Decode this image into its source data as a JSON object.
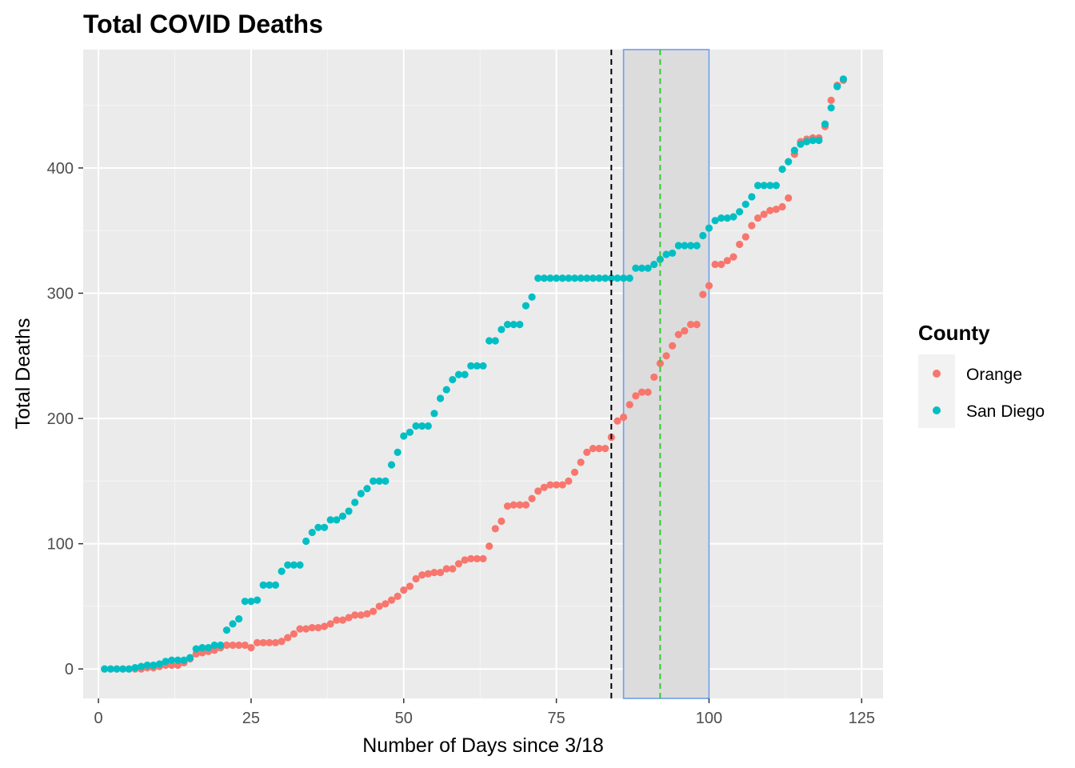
{
  "chart_data": {
    "type": "scatter",
    "title": "Total COVID Deaths",
    "xlabel": "Number of Days since 3/18",
    "ylabel": "Total Deaths",
    "xlim": [
      -2.5,
      128.5
    ],
    "ylim": [
      -23.5,
      494.5
    ],
    "x_ticks": [
      0,
      25,
      50,
      75,
      100,
      125
    ],
    "x_tick_labels": [
      "0",
      "25",
      "50",
      "75",
      "100",
      "125"
    ],
    "y_ticks": [
      0,
      100,
      200,
      300,
      400
    ],
    "y_tick_labels": [
      "0",
      "100",
      "200",
      "300",
      "400"
    ],
    "grid": true,
    "background": "#ebebeb",
    "legend": {
      "title": "County",
      "position": "right"
    },
    "shaded_region": {
      "xmin": 86,
      "xmax": 100,
      "fill": "#dcdcdc",
      "border": "#6d9eeb"
    },
    "vlines": [
      {
        "x": 84,
        "color": "#000000",
        "style": "dashed"
      },
      {
        "x": 92,
        "color": "#33cc33",
        "style": "dashed"
      }
    ],
    "series": [
      {
        "name": "Orange",
        "color": "#f8766d",
        "x": [
          1,
          2,
          3,
          4,
          5,
          6,
          7,
          8,
          9,
          10,
          11,
          12,
          13,
          14,
          15,
          16,
          17,
          18,
          19,
          20,
          21,
          22,
          23,
          24,
          25,
          26,
          27,
          28,
          29,
          30,
          31,
          32,
          33,
          34,
          35,
          36,
          37,
          38,
          39,
          40,
          41,
          42,
          43,
          44,
          45,
          46,
          47,
          48,
          49,
          50,
          51,
          52,
          53,
          54,
          55,
          56,
          57,
          58,
          59,
          60,
          61,
          62,
          63,
          64,
          65,
          66,
          67,
          68,
          69,
          70,
          71,
          72,
          73,
          74,
          75,
          76,
          77,
          78,
          79,
          80,
          81,
          82,
          83,
          84,
          85,
          86,
          87,
          88,
          89,
          90,
          91,
          92,
          93,
          94,
          95,
          96,
          97,
          98,
          99,
          100,
          101,
          102,
          103,
          104,
          105,
          106,
          107,
          108,
          109,
          110,
          111,
          112,
          113,
          114,
          115,
          116,
          117,
          118,
          119,
          120,
          121,
          122
        ],
        "y": [
          0,
          0,
          0,
          0,
          0,
          0,
          0,
          1,
          1,
          2,
          3,
          3,
          3,
          5,
          8,
          12,
          13,
          14,
          15,
          17,
          19,
          19,
          19,
          19,
          17,
          21,
          21,
          21,
          21,
          22,
          25,
          28,
          32,
          32,
          33,
          33,
          34,
          36,
          39,
          39,
          41,
          43,
          43,
          44,
          46,
          50,
          52,
          55,
          58,
          63,
          66,
          72,
          75,
          76,
          77,
          77,
          80,
          80,
          84,
          87,
          88,
          88,
          88,
          98,
          112,
          118,
          130,
          131,
          131,
          131,
          136,
          142,
          145,
          147,
          147,
          147,
          150,
          157,
          165,
          173,
          176,
          176,
          176,
          185,
          198,
          201,
          211,
          218,
          221,
          221,
          233,
          244,
          250,
          258,
          267,
          270,
          275,
          275,
          299,
          306,
          323,
          323,
          326,
          329,
          339,
          345,
          354,
          360,
          363,
          366,
          367,
          369,
          376,
          411,
          421,
          423,
          424,
          424,
          433,
          454,
          466,
          470
        ]
      },
      {
        "name": "San Diego",
        "color": "#00bfc4",
        "x": [
          1,
          2,
          3,
          4,
          5,
          6,
          7,
          8,
          9,
          10,
          11,
          12,
          13,
          14,
          15,
          16,
          17,
          18,
          19,
          20,
          21,
          22,
          23,
          24,
          25,
          26,
          27,
          28,
          29,
          30,
          31,
          32,
          33,
          34,
          35,
          36,
          37,
          38,
          39,
          40,
          41,
          42,
          43,
          44,
          45,
          46,
          47,
          48,
          49,
          50,
          51,
          52,
          53,
          54,
          55,
          56,
          57,
          58,
          59,
          60,
          61,
          62,
          63,
          64,
          65,
          66,
          67,
          68,
          69,
          70,
          71,
          72,
          73,
          74,
          75,
          76,
          77,
          78,
          79,
          80,
          81,
          82,
          83,
          84,
          85,
          86,
          87,
          88,
          89,
          90,
          91,
          92,
          93,
          94,
          95,
          96,
          97,
          98,
          99,
          100,
          101,
          102,
          103,
          104,
          105,
          106,
          107,
          108,
          109,
          110,
          111,
          112,
          113,
          114,
          115,
          116,
          117,
          118,
          119,
          120,
          121,
          122
        ],
        "y": [
          0,
          0,
          0,
          0,
          0,
          1,
          2,
          3,
          3,
          4,
          6,
          7,
          7,
          7,
          9,
          16,
          17,
          17,
          19,
          19,
          31,
          36,
          40,
          54,
          54,
          55,
          67,
          67,
          67,
          78,
          83,
          83,
          83,
          102,
          109,
          113,
          113,
          119,
          119,
          122,
          126,
          133,
          140,
          144,
          150,
          150,
          150,
          163,
          173,
          186,
          189,
          194,
          194,
          194,
          204,
          216,
          223,
          231,
          235,
          235,
          242,
          242,
          242,
          262,
          262,
          271,
          275,
          275,
          275,
          290,
          297,
          312,
          312,
          312,
          312,
          312,
          312,
          312,
          312,
          312,
          312,
          312,
          312,
          312,
          312,
          312,
          312,
          320,
          320,
          320,
          323,
          327,
          331,
          332,
          338,
          338,
          338,
          338,
          346,
          352,
          358,
          360,
          360,
          361,
          365,
          371,
          377,
          386,
          386,
          386,
          386,
          399,
          405,
          414,
          419,
          421,
          422,
          422,
          435,
          448,
          465,
          471
        ]
      }
    ]
  }
}
